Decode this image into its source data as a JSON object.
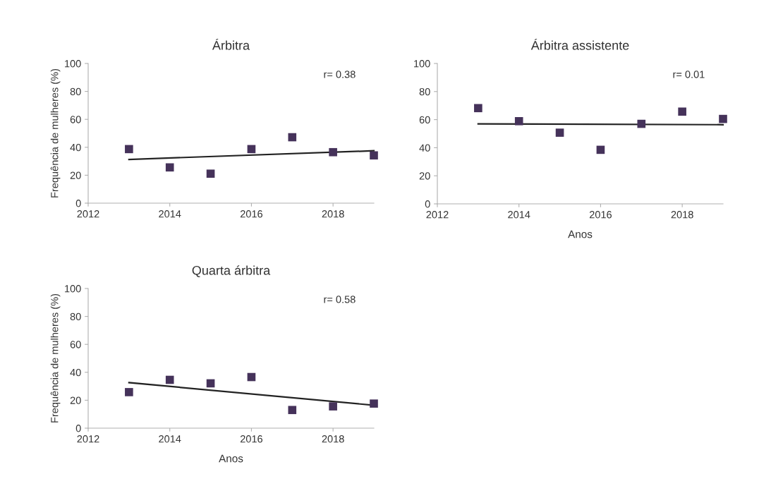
{
  "chart_data": [
    {
      "type": "scatter",
      "title": "Árbitra",
      "ylabel": "Frequência de mulheres (%)",
      "xlim": [
        2012,
        2019
      ],
      "xticks": [
        2012,
        2014,
        2016,
        2018
      ],
      "ylim": [
        0,
        100
      ],
      "yticks": [
        0,
        20,
        40,
        60,
        80,
        100
      ],
      "grid": false,
      "annotations": [
        "r= 0.38"
      ],
      "series": [
        {
          "color": "#45325a",
          "marker": "square",
          "x": [
            2013,
            2014,
            2015,
            2016,
            2017,
            2018,
            2019
          ],
          "values": [
            38.7,
            25.6,
            21.1,
            38.7,
            47.2,
            36.5,
            34.2
          ]
        },
        {
          "type": "line",
          "marker": "none",
          "color": "#222222",
          "x": [
            2013,
            2019
          ],
          "values": [
            31.3,
            37.5
          ]
        }
      ]
    },
    {
      "type": "scatter",
      "title": "Árbitra assistente",
      "xlabel": "Anos",
      "xlim": [
        2012,
        2019
      ],
      "xticks": [
        2012,
        2014,
        2016,
        2018
      ],
      "ylim": [
        0,
        100
      ],
      "yticks": [
        0,
        20,
        40,
        60,
        80,
        100
      ],
      "grid": false,
      "annotations": [
        "r= 0.01"
      ],
      "series": [
        {
          "color": "#45325a",
          "marker": "square",
          "x": [
            2013,
            2014,
            2015,
            2016,
            2017,
            2018,
            2019
          ],
          "values": [
            68.2,
            58.9,
            50.7,
            38.5,
            57.0,
            65.7,
            60.5
          ]
        },
        {
          "type": "line",
          "marker": "none",
          "color": "#222222",
          "x": [
            2013,
            2019
          ],
          "values": [
            57.0,
            56.4
          ]
        }
      ]
    },
    {
      "type": "scatter",
      "title": "Quarta árbitra",
      "xlabel": "Anos",
      "ylabel": "Frequência de mulheres (%)",
      "xlim": [
        2012,
        2019
      ],
      "xticks": [
        2012,
        2014,
        2016,
        2018
      ],
      "ylim": [
        0,
        100
      ],
      "yticks": [
        0,
        20,
        40,
        60,
        80,
        100
      ],
      "grid": false,
      "annotations": [
        "r= 0.58"
      ],
      "series": [
        {
          "color": "#45325a",
          "marker": "square",
          "x": [
            2013,
            2014,
            2015,
            2016,
            2017,
            2018,
            2019
          ],
          "values": [
            25.8,
            34.6,
            32.1,
            36.6,
            13.0,
            15.6,
            17.6
          ]
        },
        {
          "type": "line",
          "marker": "none",
          "color": "#222222",
          "x": [
            2013,
            2019
          ],
          "values": [
            32.6,
            16.4
          ]
        }
      ]
    }
  ]
}
